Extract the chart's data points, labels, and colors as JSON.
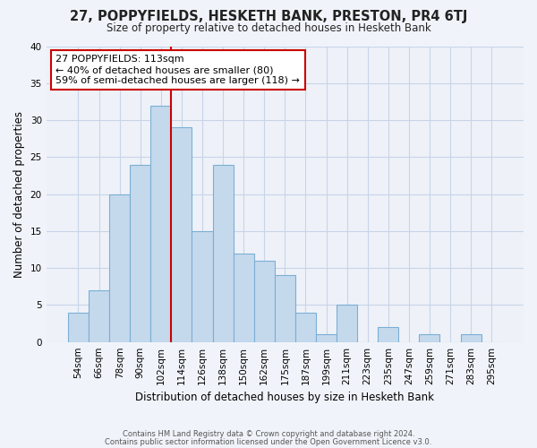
{
  "title": "27, POPPYFIELDS, HESKETH BANK, PRESTON, PR4 6TJ",
  "subtitle": "Size of property relative to detached houses in Hesketh Bank",
  "xlabel": "Distribution of detached houses by size in Hesketh Bank",
  "ylabel": "Number of detached properties",
  "bar_labels": [
    "54sqm",
    "66sqm",
    "78sqm",
    "90sqm",
    "102sqm",
    "114sqm",
    "126sqm",
    "138sqm",
    "150sqm",
    "162sqm",
    "175sqm",
    "187sqm",
    "199sqm",
    "211sqm",
    "223sqm",
    "235sqm",
    "247sqm",
    "259sqm",
    "271sqm",
    "283sqm",
    "295sqm"
  ],
  "bar_values": [
    4,
    7,
    20,
    24,
    32,
    29,
    15,
    24,
    12,
    11,
    9,
    4,
    1,
    5,
    0,
    2,
    0,
    1,
    0,
    1,
    0
  ],
  "bar_color": "#c5d9ed",
  "bar_edge_color": "#7bafd4",
  "vline_x_index": 4,
  "vline_color": "#cc0000",
  "ylim": [
    0,
    40
  ],
  "yticks": [
    0,
    5,
    10,
    15,
    20,
    25,
    30,
    35,
    40
  ],
  "annotation_text": "27 POPPYFIELDS: 113sqm\n← 40% of detached houses are smaller (80)\n59% of semi-detached houses are larger (118) →",
  "annotation_box_color": "#ffffff",
  "annotation_box_edge": "#cc0000",
  "footer1": "Contains HM Land Registry data © Crown copyright and database right 2024.",
  "footer2": "Contains public sector information licensed under the Open Government Licence v3.0.",
  "bg_color": "#f0f4fa",
  "plot_bg_color": "#eef2f8",
  "grid_color": "#c8d4e8"
}
